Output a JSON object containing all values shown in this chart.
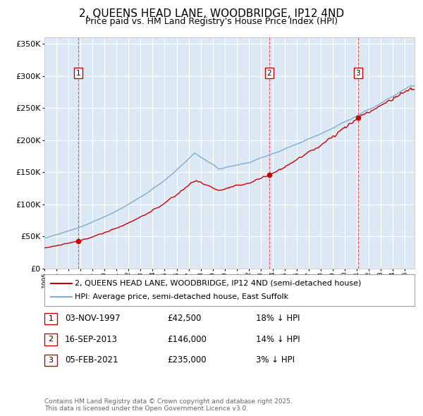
{
  "title": "2, QUEENS HEAD LANE, WOODBRIDGE, IP12 4ND",
  "subtitle": "Price paid vs. HM Land Registry's House Price Index (HPI)",
  "legend_property": "2, QUEENS HEAD LANE, WOODBRIDGE, IP12 4ND (semi-detached house)",
  "legend_hpi": "HPI: Average price, semi-detached house, East Suffolk",
  "transactions": [
    {
      "num": 1,
      "date": "03-NOV-1997",
      "price": 42500,
      "pct": "18%",
      "dir": "↓"
    },
    {
      "num": 2,
      "date": "16-SEP-2013",
      "price": 146000,
      "pct": "14%",
      "dir": "↓"
    },
    {
      "num": 3,
      "date": "05-FEB-2021",
      "price": 235000,
      "pct": "3%",
      "dir": "↓"
    }
  ],
  "transaction_dates_decimal": [
    1997.84,
    2013.71,
    2021.09
  ],
  "transaction_prices": [
    42500,
    146000,
    235000
  ],
  "price_line_color": "#cc0000",
  "hpi_line_color": "#7aadcf",
  "vline_color": "#ee3333",
  "plot_bg_color": "#dce9f5",
  "grid_color": "#ffffff",
  "marker_color": "#cc0000",
  "annotation_box_color": "#ffffff",
  "annotation_box_edge": "#cc0000",
  "ylim": [
    0,
    360000
  ],
  "xlim_start": 1995.0,
  "xlim_end": 2025.8,
  "footnote": "Contains HM Land Registry data © Crown copyright and database right 2025.\nThis data is licensed under the Open Government Licence v3.0.",
  "title_fontsize": 11,
  "subtitle_fontsize": 9,
  "axis_fontsize": 8,
  "legend_fontsize": 8,
  "table_fontsize": 8.5,
  "footnote_fontsize": 6.5
}
